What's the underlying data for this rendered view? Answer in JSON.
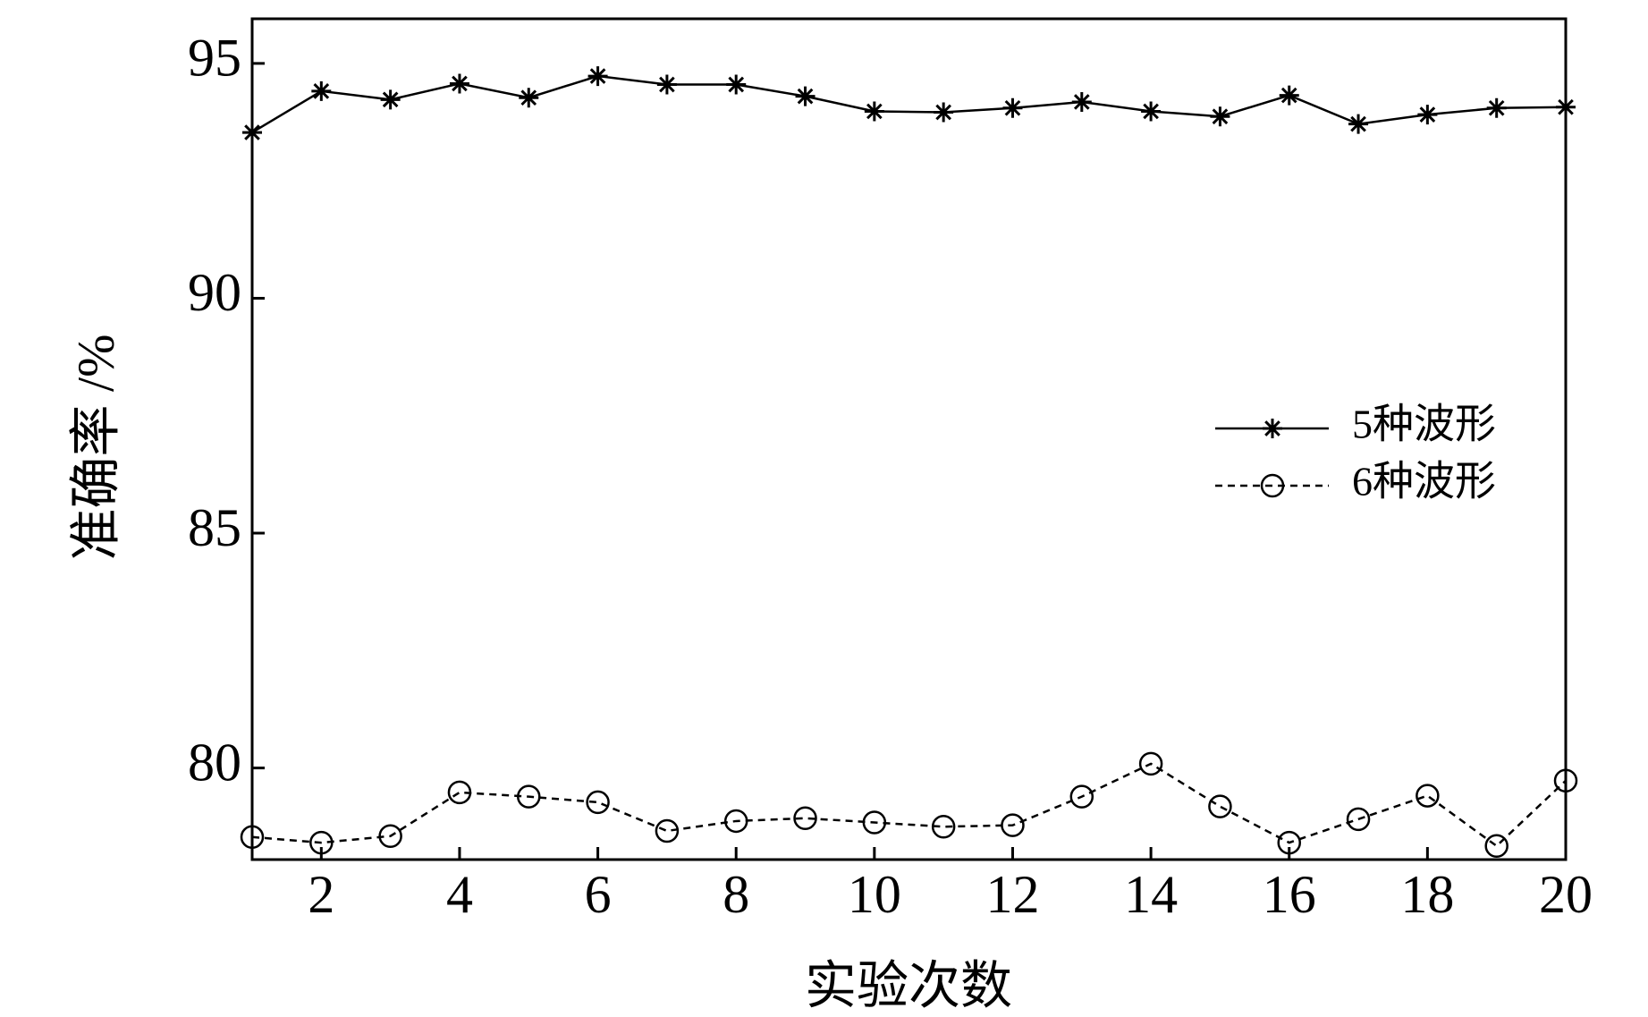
{
  "chart_data": {
    "type": "line",
    "x_label": "实验次数",
    "y_label": "准确率 /%",
    "x": [
      1,
      2,
      3,
      4,
      5,
      6,
      7,
      8,
      9,
      10,
      11,
      12,
      13,
      14,
      15,
      16,
      17,
      18,
      19,
      20
    ],
    "xlim": [
      1,
      20
    ],
    "xticks": [
      2,
      4,
      6,
      8,
      10,
      12,
      14,
      16,
      18,
      20
    ],
    "ylim": [
      78.05,
      95.95
    ],
    "yticks": [
      80,
      85,
      90,
      95
    ],
    "legend": "right",
    "series": [
      {
        "name": "5种波形",
        "color": "#000000",
        "marker": "star",
        "dash": false,
        "values": [
          93.53,
          94.41,
          94.23,
          94.57,
          94.27,
          94.73,
          94.55,
          94.55,
          94.3,
          93.98,
          93.96,
          94.05,
          94.18,
          93.98,
          93.87,
          94.32,
          93.71,
          93.91,
          94.05,
          94.07
        ]
      },
      {
        "name": "6种波形",
        "color": "#000000",
        "marker": "circle",
        "dash": true,
        "values": [
          78.53,
          78.41,
          78.55,
          79.48,
          79.39,
          79.27,
          78.66,
          78.87,
          78.93,
          78.84,
          78.75,
          78.78,
          79.39,
          80.09,
          79.18,
          78.41,
          78.91,
          79.41,
          78.34,
          79.73
        ]
      }
    ]
  }
}
